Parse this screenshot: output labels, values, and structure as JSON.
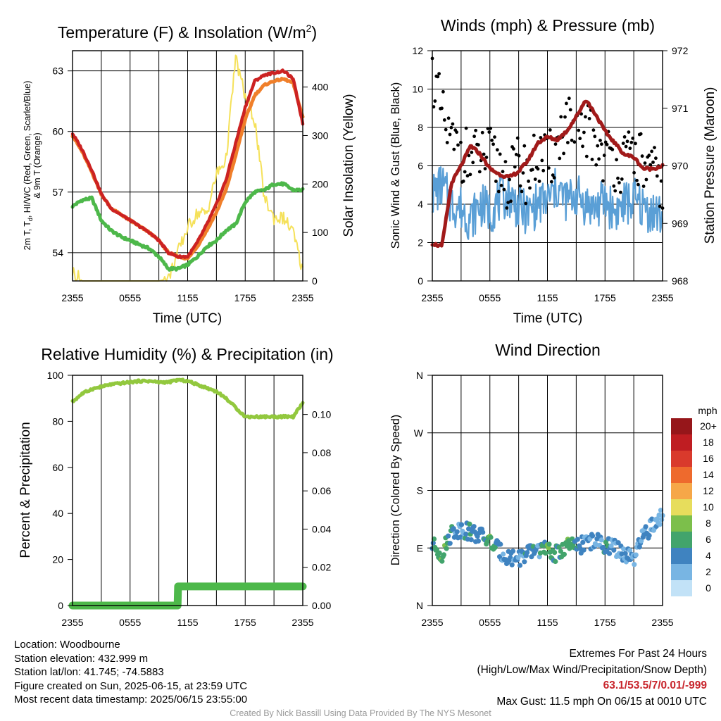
{
  "colors": {
    "t2m": "#cc2222",
    "heat_index": "#2a8f2a",
    "dewpoint": "#4db84a",
    "t9m": "#f07f2a",
    "solar": "#f5e15a",
    "sonic_wind": "#5a9fd6",
    "gust": "#000000",
    "pressure": "#a11a1a",
    "rh": "#92c83e",
    "precip": "#4db84a"
  },
  "chart_data": [
    {
      "type": "line",
      "title": "Temperature (F) & Insolation (W/m²)",
      "title_main": "Temperature (F) & Insolation (W/m",
      "title_sup": "2",
      "title_end": ")",
      "xlabel": "Time (UTC)",
      "ylabel_left_lines": [
        "2m T, T",
        "d",
        ", HI/WC (Red, Green, Scarlet/Blue)",
        "& 9m T (Orange)"
      ],
      "ylabel_right": "Solar Insolation (Yellow)",
      "x_ticks": [
        "2355",
        "0555",
        "1155",
        "1755",
        "2355"
      ],
      "yticks_left": [
        "54",
        "57",
        "60",
        "63"
      ],
      "yticks_right": [
        "0",
        "100",
        "200",
        "300",
        "400"
      ],
      "ylim_left": [
        52.6,
        64.0
      ],
      "ylim_right": [
        0,
        475
      ],
      "x": [
        0,
        1,
        2,
        3,
        4,
        5,
        6,
        7,
        8,
        9,
        10,
        11,
        12,
        13,
        14,
        15,
        16,
        17,
        18,
        19,
        20,
        21,
        22,
        23,
        24
      ],
      "series": [
        {
          "name": "2m T",
          "axis": "left",
          "color_key": "t2m",
          "values": [
            59.9,
            59.1,
            58.1,
            56.9,
            56.2,
            55.9,
            55.6,
            55.3,
            55.0,
            54.6,
            54.0,
            53.8,
            53.8,
            54.5,
            55.4,
            56.4,
            57.6,
            59.4,
            61.2,
            62.5,
            62.8,
            62.9,
            63.0,
            62.6,
            60.4
          ]
        },
        {
          "name": "9m T",
          "axis": "left",
          "color_key": "t9m",
          "values": [
            59.8,
            59.0,
            58.0,
            56.9,
            56.2,
            55.9,
            55.6,
            55.3,
            55.0,
            54.6,
            54.0,
            53.8,
            53.7,
            54.3,
            55.1,
            56.0,
            57.1,
            58.8,
            60.6,
            61.8,
            62.3,
            62.5,
            62.6,
            62.4,
            60.7
          ]
        },
        {
          "name": "Dewpoint",
          "axis": "left",
          "color_key": "dewpoint",
          "values": [
            56.3,
            56.6,
            56.7,
            55.6,
            55.1,
            54.8,
            54.6,
            54.4,
            54.2,
            53.8,
            53.2,
            53.2,
            53.4,
            53.8,
            54.3,
            54.6,
            55.1,
            55.4,
            56.5,
            57.0,
            57.1,
            57.4,
            57.4,
            57.1,
            57.1
          ]
        },
        {
          "name": "Solar Insolation",
          "axis": "right",
          "color_key": "solar",
          "values": [
            20,
            0,
            0,
            0,
            0,
            0,
            0,
            0,
            0,
            0,
            5,
            60,
            110,
            140,
            140,
            220,
            250,
            460,
            380,
            330,
            170,
            130,
            130,
            100,
            20
          ]
        }
      ]
    },
    {
      "type": "line",
      "title": "Winds (mph) & Pressure (mb)",
      "xlabel": "Time (UTC)",
      "ylabel_left": "Sonic Wind & Gust (Blue, Black)",
      "ylabel_right": "Station Pressure (Maroon)",
      "x_ticks": [
        "2355",
        "0555",
        "1155",
        "1755",
        "2355"
      ],
      "yticks_left": [
        "0",
        "2",
        "4",
        "6",
        "8",
        "10",
        "12"
      ],
      "yticks_right": [
        "968",
        "969",
        "970",
        "971",
        "972"
      ],
      "ylim_left": [
        0,
        12
      ],
      "ylim_right": [
        968,
        972
      ],
      "x": [
        0,
        1,
        2,
        3,
        4,
        5,
        6,
        7,
        8,
        9,
        10,
        11,
        12,
        13,
        14,
        15,
        16,
        17,
        18,
        19,
        20,
        21,
        22,
        23,
        24
      ],
      "series": [
        {
          "name": "Sonic Wind",
          "axis": "left",
          "color_key": "sonic_wind",
          "values": [
            4.5,
            5.0,
            4.0,
            3.8,
            3.2,
            4.0,
            3.6,
            4.2,
            4.5,
            3.8,
            3.5,
            4.0,
            4.2,
            4.8,
            4.2,
            4.5,
            4.0,
            3.8,
            4.2,
            3.6,
            4.0,
            4.2,
            3.8,
            3.6,
            3.3
          ]
        },
        {
          "name": "Gust",
          "axis": "left",
          "color_key": "gust",
          "values": [
            11.0,
            8.5,
            7.0,
            6.8,
            6.2,
            6.5,
            6.5,
            5.8,
            5.2,
            6.0,
            5.5,
            6.5,
            6.0,
            7.0,
            8.5,
            7.0,
            8.0,
            7.2,
            6.5,
            6.3,
            6.0,
            6.8,
            6.0,
            5.5,
            5.0
          ]
        },
        {
          "name": "Station Pressure",
          "axis": "right",
          "color_key": "pressure",
          "values": [
            968.65,
            968.6,
            969.7,
            970.0,
            970.35,
            970.2,
            969.95,
            969.85,
            969.8,
            969.9,
            970.1,
            970.4,
            970.5,
            970.45,
            970.6,
            970.85,
            971.15,
            970.9,
            970.6,
            970.4,
            970.2,
            970.15,
            969.95,
            969.95,
            970.0
          ]
        }
      ]
    },
    {
      "type": "line",
      "title": "Relative Humidity (%) & Precipitation (in)",
      "xlabel": "",
      "ylabel_left": "Percent & Precipitation",
      "ylabel_right": "",
      "x_ticks": [
        "2355",
        "0555",
        "1155",
        "1755",
        "2355"
      ],
      "yticks_left": [
        "0",
        "20",
        "40",
        "60",
        "80",
        "100"
      ],
      "yticks_right": [
        "0.00",
        "0.02",
        "0.04",
        "0.06",
        "0.08",
        "0.10"
      ],
      "ylim_left": [
        0,
        100
      ],
      "ylim_right": [
        0,
        0.1205
      ],
      "x": [
        0,
        1,
        2,
        3,
        4,
        5,
        6,
        7,
        8,
        9,
        10,
        11,
        12,
        13,
        14,
        15,
        16,
        17,
        18,
        19,
        20,
        21,
        22,
        23,
        24
      ],
      "series": [
        {
          "name": "Relative Humidity",
          "axis": "left",
          "color_key": "rh",
          "values": [
            88.5,
            92.0,
            94.0,
            95.0,
            96.0,
            96.5,
            97.0,
            97.5,
            97.5,
            97.0,
            97.0,
            98.0,
            97.5,
            96.0,
            94.5,
            93.0,
            90.0,
            86.0,
            82.0,
            82.0,
            82.0,
            82.0,
            82.0,
            82.0,
            88.0
          ]
        },
        {
          "name": "Precipitation",
          "axis": "right",
          "color_key": "precip",
          "values": [
            0,
            0,
            0,
            0,
            0,
            0,
            0,
            0,
            0,
            0,
            0,
            0.01,
            0.01,
            0.01,
            0.01,
            0.01,
            0.01,
            0.01,
            0.01,
            0.01,
            0.01,
            0.01,
            0.01,
            0.01,
            0.01
          ]
        }
      ]
    },
    {
      "type": "scatter",
      "title": "Wind Direction",
      "xlabel": "",
      "ylabel_left": "Direction (Colored By Speed)",
      "x_ticks": [
        "2355",
        "0555",
        "1155",
        "1755",
        "2355"
      ],
      "yticks_left": [
        "N",
        "E",
        "S",
        "W",
        "N"
      ],
      "ylim_left": [
        0,
        360
      ],
      "x": [
        0,
        1,
        2,
        3,
        4,
        5,
        6,
        7,
        8,
        9,
        10,
        11,
        12,
        13,
        14,
        15,
        16,
        17,
        18,
        19,
        20,
        21,
        22,
        23,
        24
      ],
      "series": [
        {
          "name": "Wind Direction",
          "axis": "left",
          "values": [
            95,
            80,
            115,
            120,
            115,
            110,
            100,
            85,
            75,
            75,
            80,
            90,
            85,
            80,
            95,
            90,
            100,
            100,
            95,
            90,
            80,
            70,
            110,
            125,
            140
          ],
          "speeds": [
            4,
            6,
            4,
            3,
            4,
            3,
            6,
            3,
            4,
            3,
            4,
            3,
            6,
            4,
            6,
            4,
            3,
            3,
            4,
            2,
            3,
            2,
            3,
            2,
            1
          ]
        }
      ],
      "legend": {
        "title": "mph",
        "labels": [
          "20+",
          "18",
          "16",
          "14",
          "12",
          "10",
          "8",
          "6",
          "4",
          "2",
          "0"
        ],
        "colors": [
          "#96161a",
          "#bf1d22",
          "#d93a2c",
          "#ee6a2d",
          "#f6a748",
          "#e7dd5c",
          "#7cbf4b",
          "#42a46c",
          "#3f83c0",
          "#78b5e3",
          "#c2e2f7"
        ],
        "placement": "right"
      }
    }
  ],
  "footer": {
    "location": "Location: Woodbourne",
    "elevation": "Station elevation: 432.999 m",
    "latlon": "Station lat/lon: 41.745; -74.5883",
    "created": "Figure created on Sun, 2025-06-15, at 23:59 UTC",
    "recent": "Most recent data timestamp: 2025/06/15 23:55:00",
    "extremes_title": "Extremes For Past 24 Hours",
    "extremes_labels": "(High/Low/Max Wind/Precipitation/Snow Depth)",
    "extremes_values": "63.1/53.5/7/0.01/-999",
    "max_gust": "Max Gust: 11.5 mph On 06/15 at 0010 UTC",
    "credit": "Created By Nick Bassill Using Data Provided By The NYS Mesonet"
  }
}
